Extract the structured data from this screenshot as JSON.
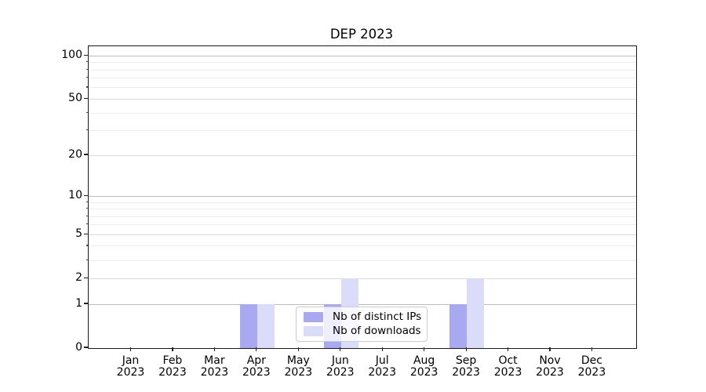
{
  "chart_data": {
    "type": "bar",
    "title": "DEP 2023",
    "categories": [
      "Jan 2023",
      "Feb 2023",
      "Mar 2023",
      "Apr 2023",
      "May 2023",
      "Jun 2023",
      "Jul 2023",
      "Aug 2023",
      "Sep 2023",
      "Oct 2023",
      "Nov 2023",
      "Dec 2023"
    ],
    "x_tick_months": [
      "Jan",
      "Feb",
      "Mar",
      "Apr",
      "May",
      "Jun",
      "Jul",
      "Aug",
      "Sep",
      "Oct",
      "Nov",
      "Dec"
    ],
    "x_tick_year": "2023",
    "series": [
      {
        "name": "Nb of distinct IPs",
        "color": "#a9a9f2",
        "values": [
          0,
          0,
          0,
          1,
          0,
          1,
          0,
          0,
          1,
          0,
          0,
          0
        ]
      },
      {
        "name": "Nb of downloads",
        "color": "#dbdbfa",
        "values": [
          0,
          0,
          0,
          1,
          0,
          2,
          0,
          0,
          2,
          0,
          0,
          0
        ]
      }
    ],
    "xlabel": "",
    "ylabel": "",
    "y_axis": {
      "scale": "log1p",
      "major_ticks": [
        0,
        1,
        2,
        5,
        10,
        20,
        50,
        100
      ],
      "emphasis_gridlines": [
        1,
        10,
        100
      ],
      "minor_gridlines": [
        3,
        4,
        6,
        7,
        8,
        9,
        30,
        40,
        60,
        70,
        80,
        90
      ],
      "top_value": 118
    },
    "grid": true,
    "legend": {
      "position": "lower-center",
      "entries": [
        "Nb of distinct IPs",
        "Nb of downloads"
      ]
    }
  },
  "colors": {
    "axis_spine": "#1a1a1a",
    "grid_emphasis": "#bdbdbd",
    "grid_major": "#dadada",
    "grid_minor": "#ededed",
    "tick": "#222222",
    "legend_border": "#cccccc",
    "background": "#ffffff"
  }
}
